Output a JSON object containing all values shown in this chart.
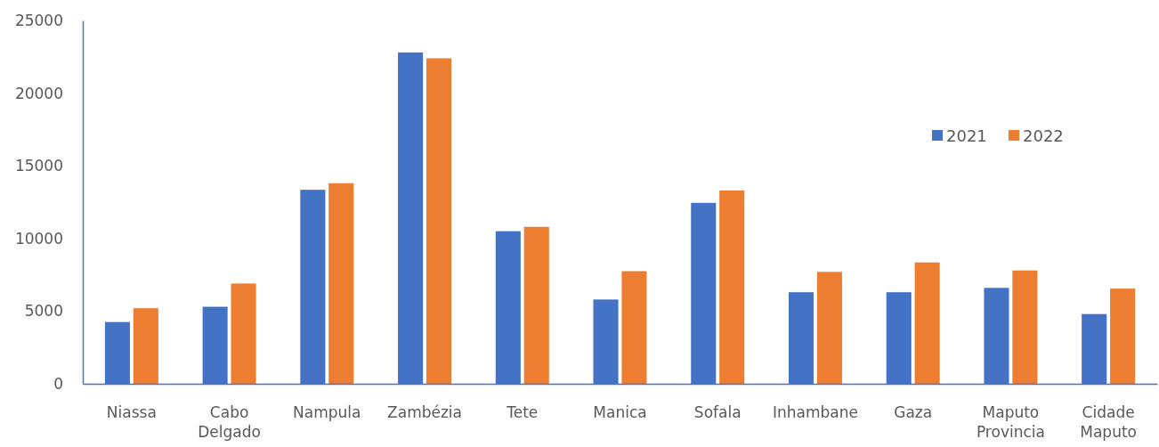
{
  "chart_data": {
    "type": "bar",
    "categories": [
      "Niassa",
      "Cabo Delgado",
      "Nampula",
      "Zambézia",
      "Tete",
      "Manica",
      "Sofala",
      "Inhambane",
      "Gaza",
      "Maputo Provincia",
      "Cidade Maputo"
    ],
    "series": [
      {
        "name": "2021",
        "color": "#4472c4",
        "values": [
          4250,
          5300,
          13350,
          22800,
          10500,
          5800,
          12450,
          6300,
          6300,
          6600,
          4800
        ]
      },
      {
        "name": "2022",
        "color": "#ed7d31",
        "values": [
          5200,
          6900,
          13800,
          22400,
          10800,
          7750,
          13300,
          7700,
          8350,
          7800,
          6550
        ]
      }
    ],
    "ylim": [
      0,
      25000
    ],
    "yticks": [
      0,
      5000,
      10000,
      15000,
      20000,
      25000
    ],
    "grid": false,
    "legend": "top right"
  }
}
